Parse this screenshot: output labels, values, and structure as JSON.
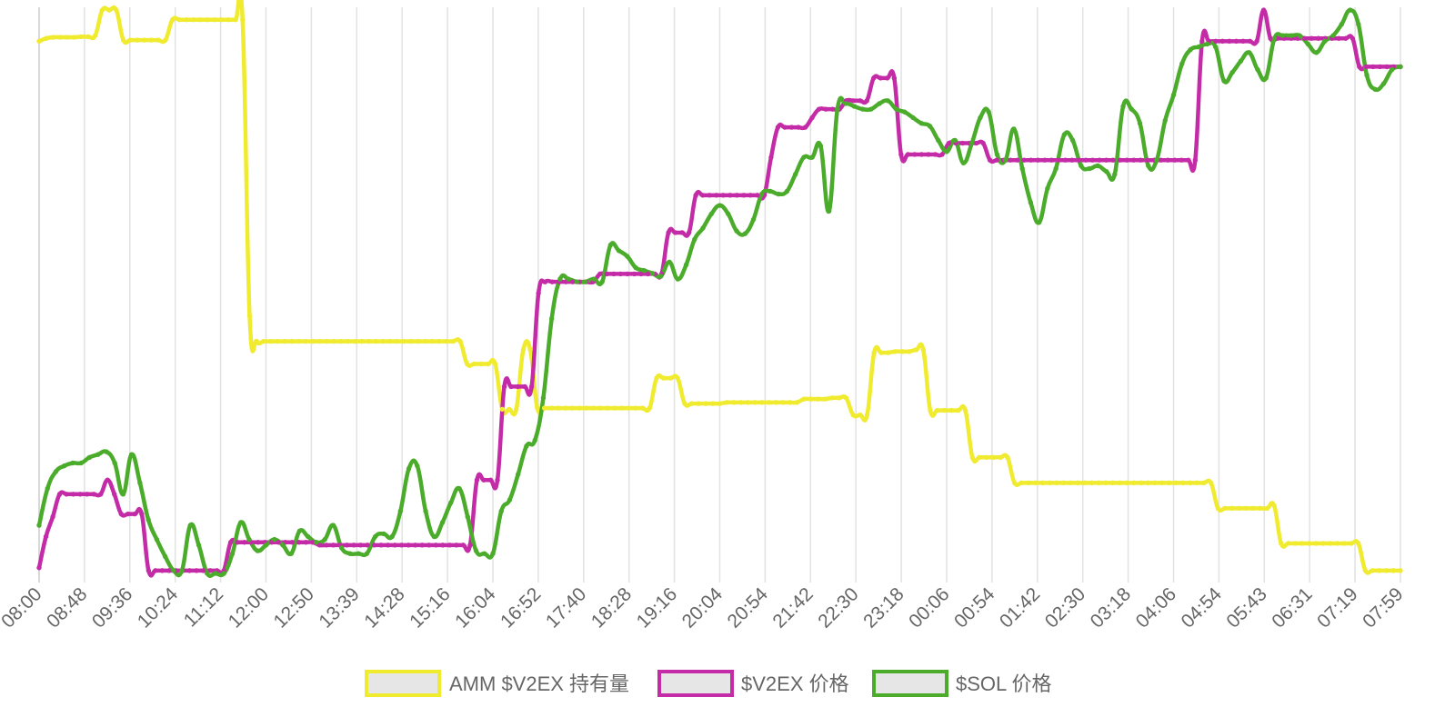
{
  "chart_data": {
    "type": "line",
    "title": "",
    "xlabel": "",
    "ylabel": "",
    "grid": true,
    "legend_position": "bottom",
    "x_tick_labels": [
      "08:00",
      "08:48",
      "09:36",
      "10:24",
      "11:12",
      "12:00",
      "12:50",
      "13:39",
      "14:28",
      "15:16",
      "16:04",
      "16:52",
      "17:40",
      "18:28",
      "19:16",
      "20:04",
      "20:54",
      "21:42",
      "22:30",
      "23:18",
      "00:06",
      "00:54",
      "01:42",
      "02:30",
      "03:18",
      "04:06",
      "04:54",
      "05:43",
      "06:31",
      "07:19",
      "07:59"
    ],
    "series": [
      {
        "name": "AMM $V2EX 持有量",
        "color": "#f0eb2e",
        "values": [
          94.0,
          94.5,
          94.7,
          94.7,
          94.7,
          94.7,
          94.8,
          94.8,
          95.0,
          99.5,
          99.5,
          99.5,
          94.2,
          94.2,
          94.2,
          94.2,
          94.2,
          94.2,
          94.2,
          97.8,
          97.8,
          97.8,
          97.8,
          97.8,
          97.8,
          97.8,
          97.8,
          97.8,
          97.8,
          97.8,
          45.5,
          41.0,
          41.0,
          41.0,
          41.0,
          41.0,
          41.0,
          41.0,
          41.0,
          41.0,
          41.0,
          41.0,
          41.0,
          41.0,
          41.0,
          41.0,
          41.0,
          41.0,
          41.0,
          41.0,
          41.0,
          41.0,
          41.0,
          41.0,
          41.0,
          41.0,
          41.0,
          41.0,
          41.0,
          41.0,
          41.0,
          37.0,
          37.0,
          37.0,
          37.0,
          37.0,
          29.0,
          29.0,
          29.0,
          39.5,
          39.5,
          29.2,
          29.2,
          29.2,
          29.2,
          29.2,
          29.2,
          29.2,
          29.2,
          29.2,
          29.2,
          29.2,
          29.2,
          29.2,
          29.2,
          29.2,
          29.2,
          29.2,
          34.5,
          34.5,
          34.5,
          34.5,
          30.0,
          30.0,
          30.0,
          30.0,
          30.0,
          30.0,
          30.2,
          30.2,
          30.2,
          30.2,
          30.2,
          30.2,
          30.2,
          30.2,
          30.2,
          30.2,
          30.2,
          30.8,
          30.8,
          30.8,
          30.8,
          31.0,
          31.0,
          31.0,
          28.0,
          28.0,
          28.0,
          39.0,
          39.0,
          39.0,
          39.2,
          39.2,
          39.2,
          39.5,
          39.5,
          28.8,
          28.8,
          28.8,
          28.8,
          28.8,
          28.8,
          20.5,
          20.5,
          20.5,
          20.5,
          20.5,
          20.5,
          16.0,
          16.0,
          16.0,
          16.0,
          16.0,
          16.0,
          16.0,
          16.0,
          16.0,
          16.0,
          16.0,
          16.0,
          16.0,
          16.0,
          16.0,
          16.0,
          16.0,
          16.0,
          16.0,
          16.0,
          16.0,
          16.0,
          16.0,
          16.0,
          16.0,
          16.0,
          16.0,
          16.0,
          16.0,
          11.5,
          11.5,
          11.5,
          11.5,
          11.5,
          11.5,
          11.5,
          11.5,
          12.0,
          5.3,
          5.3,
          5.3,
          5.3,
          5.3,
          5.3,
          5.3,
          5.3,
          5.3,
          5.3,
          5.3,
          5.3,
          0.5,
          0.5,
          0.5,
          0.5,
          0.5,
          0.5
        ]
      },
      {
        "name": "$V2EX 价格",
        "color": "#c42ba7",
        "values": [
          1.0,
          6.5,
          10.0,
          14.0,
          14.0,
          14.0,
          14.0,
          14.0,
          14.0,
          14.0,
          16.5,
          14.0,
          10.5,
          10.5,
          10.5,
          10.5,
          0.5,
          0.5,
          0.5,
          0.5,
          0.5,
          0.5,
          0.5,
          0.5,
          0.5,
          0.5,
          0.5,
          0.5,
          5.5,
          5.5,
          5.5,
          5.5,
          5.5,
          5.5,
          5.5,
          5.5,
          5.5,
          5.5,
          5.5,
          5.5,
          5.5,
          5.0,
          5.0,
          5.0,
          5.0,
          5.0,
          5.0,
          5.0,
          5.0,
          5.0,
          5.0,
          5.0,
          5.0,
          5.0,
          5.0,
          5.0,
          5.0,
          5.0,
          5.0,
          5.0,
          5.0,
          5.0,
          5.0,
          5.0,
          16.5,
          16.5,
          16.5,
          16.5,
          33.0,
          33.0,
          33.0,
          33.0,
          33.0,
          49.5,
          51.5,
          51.5,
          51.5,
          51.5,
          51.5,
          51.5,
          51.5,
          51.5,
          52.9,
          52.9,
          52.9,
          52.9,
          52.9,
          52.9,
          52.9,
          52.9,
          52.9,
          52.9,
          60.2,
          60.2,
          60.2,
          60.2,
          66.8,
          66.8,
          66.8,
          66.8,
          66.8,
          66.8,
          66.8,
          66.8,
          66.8,
          66.8,
          66.8,
          73.5,
          78.8,
          78.8,
          78.8,
          78.8,
          78.8,
          80.5,
          82.0,
          82.0,
          82.0,
          82.0,
          83.5,
          83.5,
          83.5,
          83.5,
          87.5,
          87.5,
          87.5,
          87.5,
          74.0,
          74.0,
          74.0,
          74.0,
          74.0,
          74.0,
          74.0,
          76.0,
          76.0,
          76.0,
          76.0,
          76.0,
          76.0,
          73.0,
          73.0,
          73.0,
          73.0,
          73.0,
          73.0,
          73.0,
          73.0,
          73.0,
          73.0,
          73.0,
          73.0,
          73.0,
          73.0,
          73.0,
          73.0,
          73.0,
          73.0,
          73.0,
          73.0,
          73.0,
          73.0,
          73.0,
          73.0,
          73.0,
          73.0,
          73.0,
          73.0,
          73.0,
          73.0,
          73.0,
          94.0,
          94.0,
          94.0,
          94.0,
          94.0,
          94.0,
          94.0,
          94.0,
          94.0,
          99.5,
          94.5,
          94.5,
          94.5,
          94.5,
          94.5,
          94.5,
          94.5,
          94.5,
          94.5,
          94.5,
          94.5,
          94.5,
          94.5,
          89.5,
          89.5,
          89.5,
          89.5,
          89.5,
          89.5,
          89.5
        ]
      },
      {
        "name": "$SOL 价格",
        "color": "#4aac2a",
        "values": [
          8.5,
          15.0,
          18.0,
          19.0,
          19.5,
          19.5,
          20.5,
          21.0,
          21.5,
          19.5,
          14.0,
          21.0,
          16.0,
          9.5,
          6.0,
          3.0,
          0.5,
          0.5,
          8.5,
          5.0,
          0.0,
          0.0,
          0.0,
          3.5,
          9.0,
          6.0,
          4.0,
          5.0,
          6.0,
          5.0,
          3.5,
          7.5,
          6.5,
          5.5,
          6.0,
          8.5,
          4.5,
          3.5,
          3.5,
          3.5,
          6.5,
          7.0,
          6.5,
          11.0,
          18.5,
          19.0,
          11.0,
          6.5,
          9.0,
          12.5,
          15.0,
          10.0,
          4.0,
          3.5,
          3.5,
          11.0,
          13.0,
          17.5,
          22.5,
          23.5,
          31.0,
          45.0,
          52.0,
          52.0,
          51.5,
          51.5,
          52.0,
          51.5,
          58.0,
          57.0,
          56.0,
          54.0,
          53.5,
          53.0,
          52.5,
          55.0,
          52.0,
          54.5,
          59.0,
          61.0,
          63.5,
          65.0,
          63.5,
          60.5,
          60.0,
          62.5,
          67.0,
          67.5,
          67.0,
          67.5,
          70.5,
          73.5,
          73.5,
          75.5,
          64.0,
          82.0,
          83.0,
          82.5,
          82.0,
          82.0,
          83.0,
          83.5,
          82.0,
          81.5,
          80.5,
          79.5,
          79.0,
          76.5,
          74.5,
          76.5,
          72.5,
          76.0,
          80.5,
          81.5,
          74.0,
          73.0,
          78.5,
          71.5,
          65.5,
          62.0,
          68.0,
          71.5,
          77.5,
          76.5,
          72.0,
          71.5,
          72.0,
          71.0,
          70.5,
          82.5,
          82.0,
          79.5,
          72.0,
          73.0,
          80.0,
          84.5,
          90.0,
          92.5,
          93.0,
          93.5,
          93.0,
          87.0,
          88.5,
          90.5,
          92.0,
          89.0,
          87.5,
          94.5,
          95.0,
          95.0,
          95.0,
          93.5,
          92.0,
          94.0,
          95.0,
          97.0,
          99.5,
          97.0,
          88.0,
          85.5,
          86.5,
          89.0,
          89.5
        ]
      }
    ]
  }
}
